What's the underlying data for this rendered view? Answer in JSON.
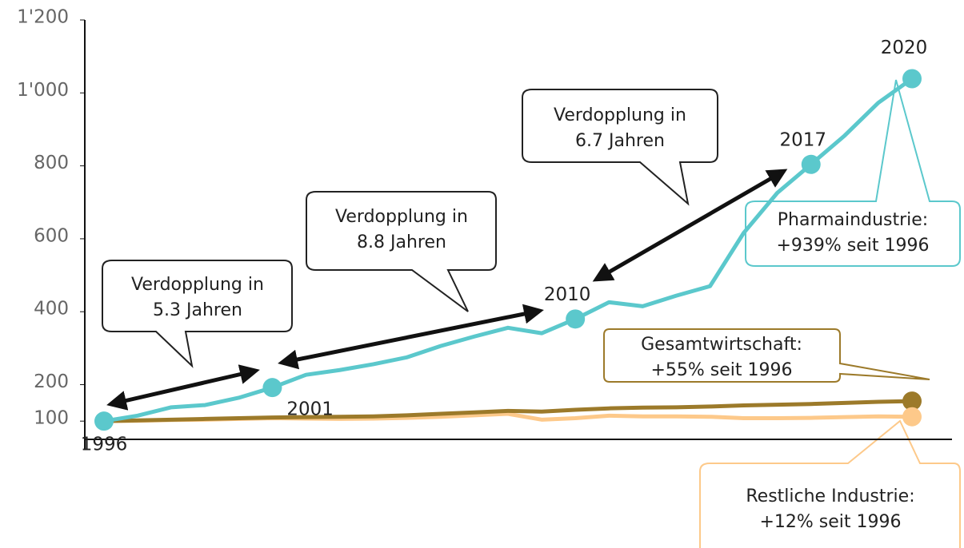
{
  "chart_data": {
    "type": "line",
    "categories": [
      "1996",
      null,
      null,
      null,
      null,
      "2001",
      null,
      null,
      null,
      null,
      null,
      null,
      null,
      null,
      "2010",
      null,
      null,
      null,
      null,
      null,
      null,
      "2017",
      null,
      null,
      "2020"
    ],
    "series": [
      {
        "name": "Pharmaindustrie:",
        "note": "+939% seit 1996",
        "color": "#5bc8cc",
        "values": [
          100,
          115,
          138,
          144,
          164,
          192,
          227,
          240,
          256,
          275,
          306,
          332,
          356,
          341,
          380,
          426,
          415,
          444,
          470,
          616,
          726,
          804,
          883,
          973,
          1039
        ]
      },
      {
        "name": "Gesamtwirtschaft:",
        "note": "+55% seit 1996",
        "color": "#9c7a2a",
        "values": [
          100,
          102,
          104,
          106,
          108,
          110,
          111,
          112,
          113,
          116,
          120,
          124,
          128,
          126,
          131,
          135,
          137,
          138,
          140,
          143,
          145,
          147,
          150,
          153,
          155
        ]
      },
      {
        "name": "Restliche Industrie:",
        "note": "+12% seit 1996",
        "color": "#fdc98a",
        "values": [
          100,
          101,
          103,
          104,
          106,
          108,
          107,
          106,
          107,
          109,
          112,
          116,
          120,
          104,
          108,
          115,
          113,
          113,
          112,
          108,
          108,
          109,
          111,
          113,
          112
        ]
      }
    ],
    "annotations": [
      [
        "Verdopplung in",
        "5.3 Jahren"
      ],
      [
        "Verdopplung in",
        "8.8 Jahren"
      ],
      [
        "Verdopplung in",
        "6.7 Jahren"
      ]
    ],
    "ylim": [
      50,
      1200
    ],
    "yticks": [
      100,
      200,
      400,
      600,
      800,
      {
        "value": 1000,
        "label": "1'000"
      },
      {
        "value": 1200,
        "label": "1'200"
      }
    ],
    "grid": false
  }
}
